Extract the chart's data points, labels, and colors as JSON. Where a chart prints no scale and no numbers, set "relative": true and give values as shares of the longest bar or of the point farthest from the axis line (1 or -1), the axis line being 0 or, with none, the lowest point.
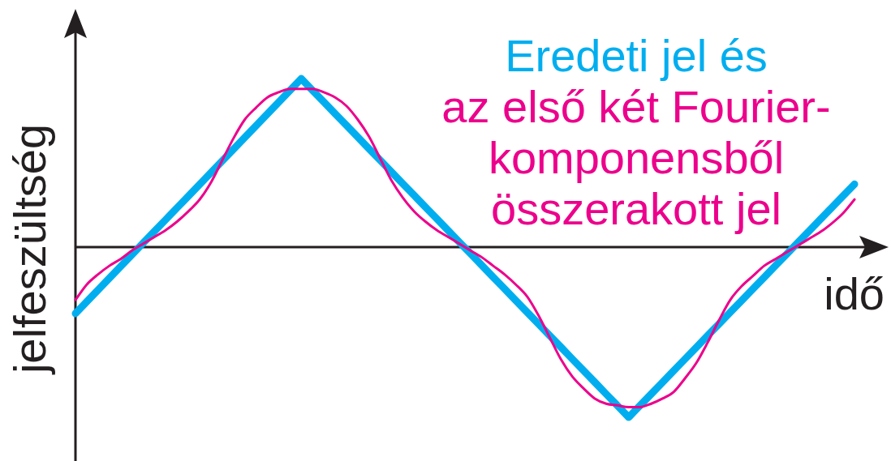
{
  "chart_data": {
    "type": "line",
    "relative": true,
    "xlabel": "idő",
    "ylabel": "jelfeszültség",
    "legend": "top right",
    "categories": [
      null,
      null,
      null,
      null,
      null,
      null,
      null,
      null,
      null,
      null,
      null,
      null,
      null,
      null,
      null,
      null,
      null,
      null,
      null,
      null,
      null,
      null,
      null,
      null,
      null,
      null,
      null,
      null,
      null,
      null,
      null,
      null,
      null,
      null,
      null,
      null,
      null,
      null,
      null,
      null,
      null,
      null,
      null,
      null,
      null,
      null,
      null,
      null,
      null,
      null,
      null,
      null,
      null,
      null,
      null,
      null,
      null,
      null,
      null,
      null,
      null,
      null,
      null,
      null,
      null,
      null,
      null,
      null,
      null,
      null
    ],
    "series": [
      {
        "name": "Eredeti jel és",
        "color": "#00aeef",
        "values": [
          -0.39,
          -0.321,
          -0.252,
          -0.183,
          -0.114,
          -0.045,
          0.024,
          0.093,
          0.162,
          0.231,
          0.3,
          0.369,
          0.438,
          0.507,
          0.576,
          0.645,
          0.714,
          0.783,
          0.852,
          0.921,
          0.99,
          0.921,
          0.853,
          0.784,
          0.716,
          0.647,
          0.578,
          0.51,
          0.441,
          0.372,
          0.304,
          0.235,
          0.167,
          0.098,
          0.029,
          -0.039,
          -0.108,
          -0.177,
          -0.245,
          -0.314,
          -0.382,
          -0.451,
          -0.52,
          -0.588,
          -0.657,
          -0.726,
          -0.794,
          -0.863,
          -0.931,
          -1.0,
          -0.931,
          -0.863,
          -0.794,
          -0.726,
          -0.657,
          -0.589,
          -0.52,
          -0.452,
          -0.383,
          -0.315,
          -0.246,
          -0.178,
          -0.109,
          -0.041,
          0.028,
          0.096,
          0.165,
          0.233,
          0.302,
          0.37
        ]
      },
      {
        "name": "az első két Fourier-komponensből összerakott jel",
        "color": "#ec008c",
        "values": [
          -0.31,
          -0.22,
          -0.16,
          -0.11,
          -0.07,
          -0.02,
          0.02,
          0.06,
          0.1,
          0.15,
          0.21,
          0.28,
          0.38,
          0.51,
          0.64,
          0.75,
          0.82,
          0.88,
          0.91,
          0.93,
          0.93,
          0.93,
          0.91,
          0.88,
          0.83,
          0.75,
          0.65,
          0.52,
          0.39,
          0.29,
          0.21,
          0.15,
          0.1,
          0.06,
          0.02,
          -0.02,
          -0.06,
          -0.11,
          -0.16,
          -0.22,
          -0.29,
          -0.4,
          -0.53,
          -0.66,
          -0.76,
          -0.83,
          -0.89,
          -0.92,
          -0.93,
          -0.94,
          -0.94,
          -0.92,
          -0.89,
          -0.85,
          -0.77,
          -0.68,
          -0.56,
          -0.43,
          -0.31,
          -0.23,
          -0.17,
          -0.11,
          -0.07,
          -0.03,
          0.01,
          0.05,
          0.09,
          0.14,
          0.2,
          0.28
        ]
      }
    ]
  }
}
